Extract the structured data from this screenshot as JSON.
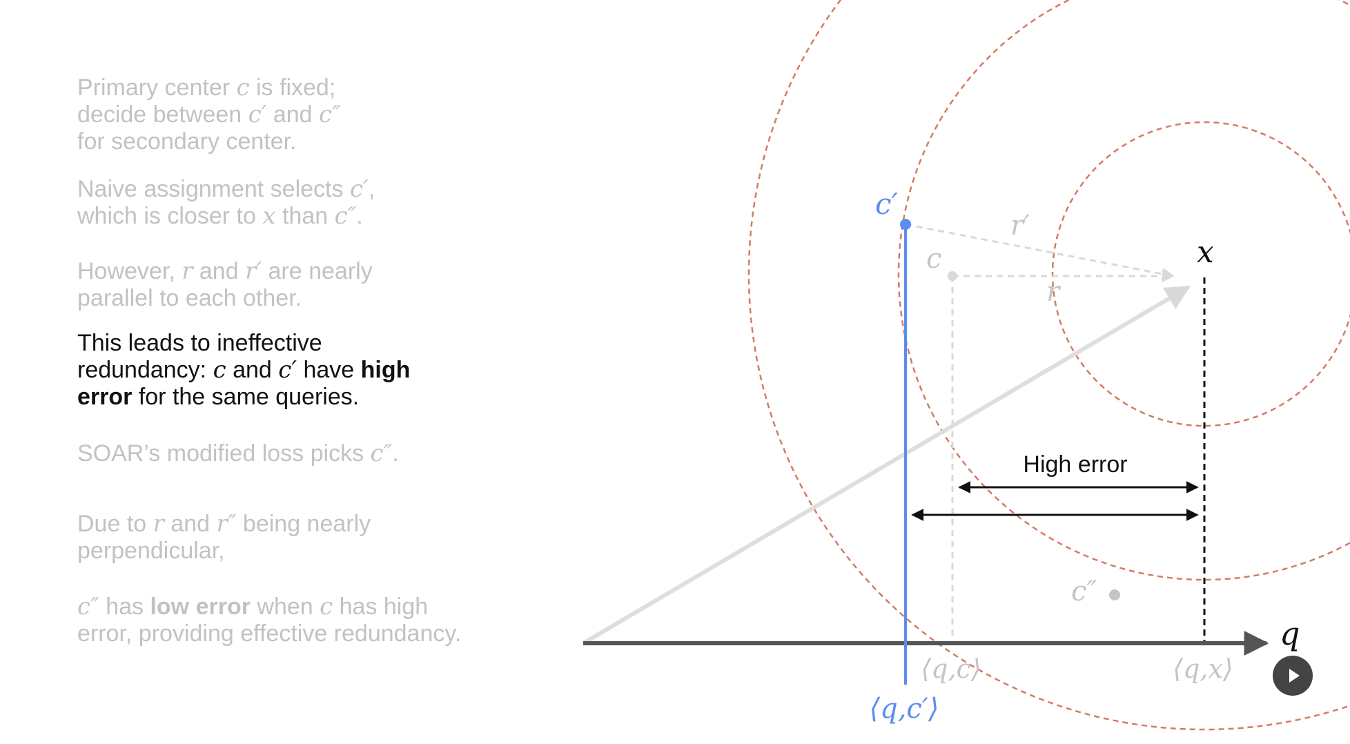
{
  "text_panel": {
    "paragraphs": [
      {
        "id": "p1",
        "active": false,
        "lines": [
          [
            {
              "t": "Primary center "
            },
            {
              "t": "c",
              "m": true
            },
            {
              "t": " is fixed;"
            }
          ],
          [
            {
              "t": "decide between "
            },
            {
              "t": "c′",
              "m": true
            },
            {
              "t": " and "
            },
            {
              "t": "c″",
              "m": true
            }
          ],
          [
            {
              "t": "for secondary center."
            }
          ]
        ]
      },
      {
        "id": "p2",
        "active": false,
        "lines": [
          [
            {
              "t": "Naive assignment selects "
            },
            {
              "t": "c′",
              "m": true
            },
            {
              "t": ","
            }
          ],
          [
            {
              "t": "which is closer to "
            },
            {
              "t": "x",
              "m": true
            },
            {
              "t": " than "
            },
            {
              "t": "c″",
              "m": true
            },
            {
              "t": "."
            }
          ]
        ]
      },
      {
        "id": "p3",
        "active": false,
        "lines": [
          [
            {
              "t": "However, "
            },
            {
              "t": "r",
              "m": true
            },
            {
              "t": " and "
            },
            {
              "t": "r′",
              "m": true
            },
            {
              "t": " are nearly"
            }
          ],
          [
            {
              "t": "parallel to each other."
            }
          ]
        ]
      },
      {
        "id": "p4",
        "active": true,
        "lines": [
          [
            {
              "t": "This leads to ineffective"
            }
          ],
          [
            {
              "t": "redundancy: "
            },
            {
              "t": "c",
              "m": true
            },
            {
              "t": " and "
            },
            {
              "t": "c′",
              "m": true
            },
            {
              "t": " have "
            },
            {
              "t": "high",
              "b": true
            }
          ],
          [
            {
              "t": "error",
              "b": true
            },
            {
              "t": " for the same queries."
            }
          ]
        ]
      },
      {
        "id": "p5",
        "active": false,
        "lines": [
          [
            {
              "t": "SOAR’s modified loss picks "
            },
            {
              "t": "c″",
              "m": true
            },
            {
              "t": "."
            }
          ]
        ]
      },
      {
        "id": "p6",
        "active": false,
        "lines": [
          [
            {
              "t": "Due to "
            },
            {
              "t": "r",
              "m": true
            },
            {
              "t": " and "
            },
            {
              "t": "r″",
              "m": true
            },
            {
              "t": " being nearly"
            }
          ],
          [
            {
              "t": "perpendicular,"
            }
          ]
        ]
      },
      {
        "id": "p7",
        "active": false,
        "lines": [
          [
            {
              "t": "c″",
              "m": true
            },
            {
              "t": " has "
            },
            {
              "t": "low error",
              "b": true
            },
            {
              "t": " when "
            },
            {
              "t": "c",
              "m": true
            },
            {
              "t": " has high"
            }
          ],
          [
            {
              "t": "error, providing effective redundancy."
            }
          ]
        ]
      }
    ]
  },
  "diagram": {
    "labels": {
      "c_prime": "c′",
      "c": "c",
      "c_double_prime": "c″",
      "x": "x",
      "q": "q",
      "r_prime": "r′",
      "r": "r",
      "proj_c_prime": "⟨q,c′⟩",
      "proj_c": "⟨q,c⟩",
      "proj_x": "⟨q,x⟩",
      "high_error": "High error"
    },
    "colors": {
      "blue": "#5b8dee",
      "circle": "#d57a63",
      "axis": "#555555",
      "faded": "#d9d9d9",
      "faded_text": "#c4c4c4",
      "black": "#111111"
    }
  },
  "controls": {
    "play_icon": "play-icon"
  }
}
